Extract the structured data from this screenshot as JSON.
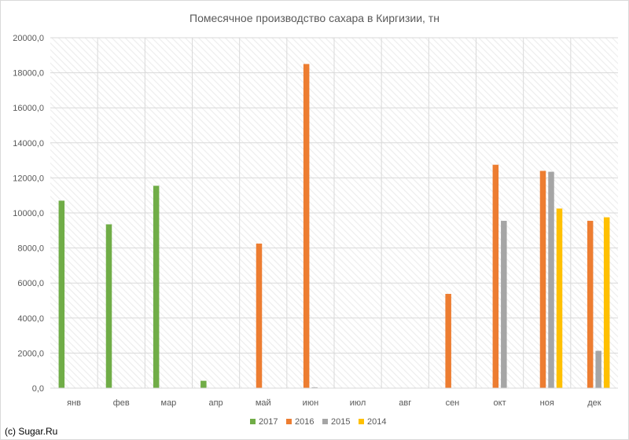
{
  "chart_data": {
    "type": "bar",
    "title": "Помесячное производство сахара в Киргизии, тн",
    "categories": [
      "янв",
      "фев",
      "мар",
      "апр",
      "май",
      "июн",
      "июл",
      "авг",
      "сен",
      "окт",
      "ноя",
      "дек"
    ],
    "series": [
      {
        "name": "2017",
        "color": "#70ad47",
        "values": [
          10700,
          9350,
          11550,
          420,
          0,
          0,
          0,
          0,
          0,
          0,
          0,
          0
        ]
      },
      {
        "name": "2016",
        "color": "#ed7d31",
        "values": [
          0,
          0,
          0,
          0,
          8250,
          18500,
          0,
          0,
          5380,
          12750,
          12400,
          9550
        ]
      },
      {
        "name": "2015",
        "color": "#a5a5a5",
        "values": [
          0,
          0,
          0,
          0,
          0,
          50,
          0,
          0,
          0,
          9550,
          12350,
          2130
        ]
      },
      {
        "name": "2014",
        "color": "#ffc000",
        "values": [
          0,
          0,
          0,
          0,
          0,
          0,
          0,
          0,
          0,
          0,
          10250,
          9750
        ]
      }
    ],
    "ylim": [
      0,
      20000
    ],
    "yticks": [
      0,
      2000,
      4000,
      6000,
      8000,
      10000,
      12000,
      14000,
      16000,
      18000,
      20000
    ],
    "ytick_labels": [
      "0,0",
      "2000,0",
      "4000,0",
      "6000,0",
      "8000,0",
      "10000,0",
      "12000,0",
      "14000,0",
      "16000,0",
      "18000,0",
      "20000,0"
    ],
    "xlabel": "",
    "ylabel": "",
    "grid": true,
    "legend_position": "bottom"
  },
  "footer": {
    "copyright": "(c) Sugar.Ru"
  }
}
